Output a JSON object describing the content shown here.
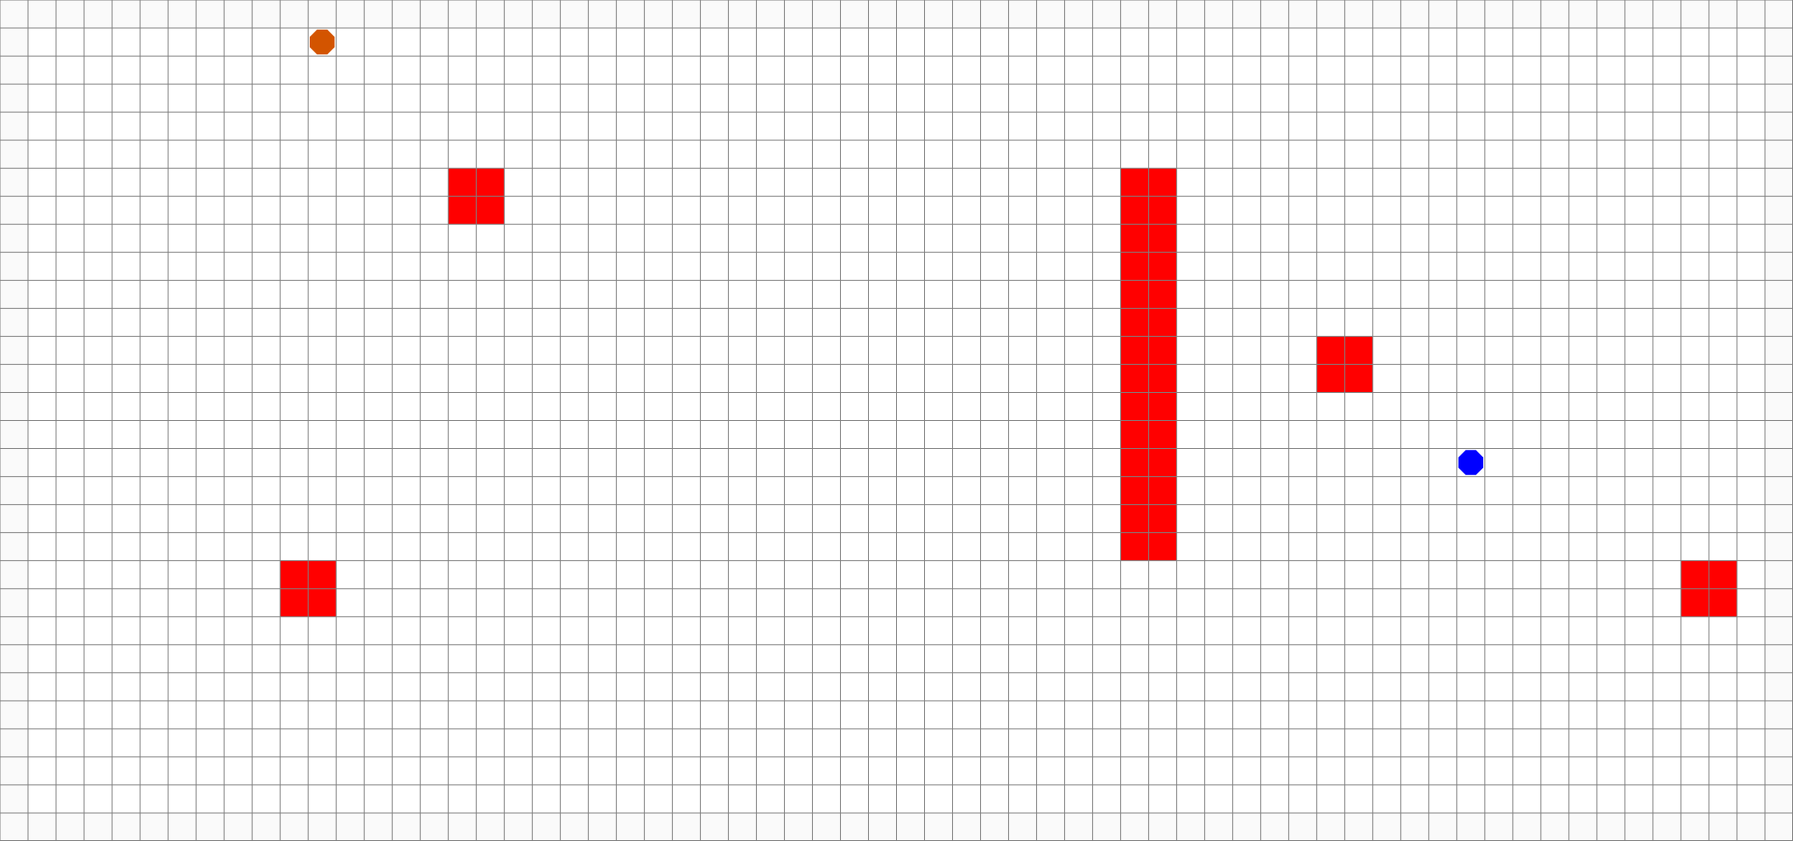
{
  "board": {
    "columns": 64,
    "rows": 30,
    "background_color": "#fafafa",
    "cell_color": "#ffffff",
    "grid_line_color": "#808080",
    "obstacle_color": "#ff0000"
  },
  "obstacles": [
    {
      "col": 16,
      "row": 6,
      "w": 2,
      "h": 2
    },
    {
      "col": 40,
      "row": 6,
      "w": 2,
      "h": 14
    },
    {
      "col": 47,
      "row": 12,
      "w": 2,
      "h": 2
    },
    {
      "col": 10,
      "row": 20,
      "w": 2,
      "h": 2
    },
    {
      "col": 60,
      "row": 20,
      "w": 2,
      "h": 2
    }
  ],
  "agents": [
    {
      "id": "orange-agent",
      "color": "#d35400",
      "col": 11.5,
      "row": 1.5
    },
    {
      "id": "blue-agent",
      "color": "#0000ff",
      "col": 52.5,
      "row": 16.5
    }
  ]
}
